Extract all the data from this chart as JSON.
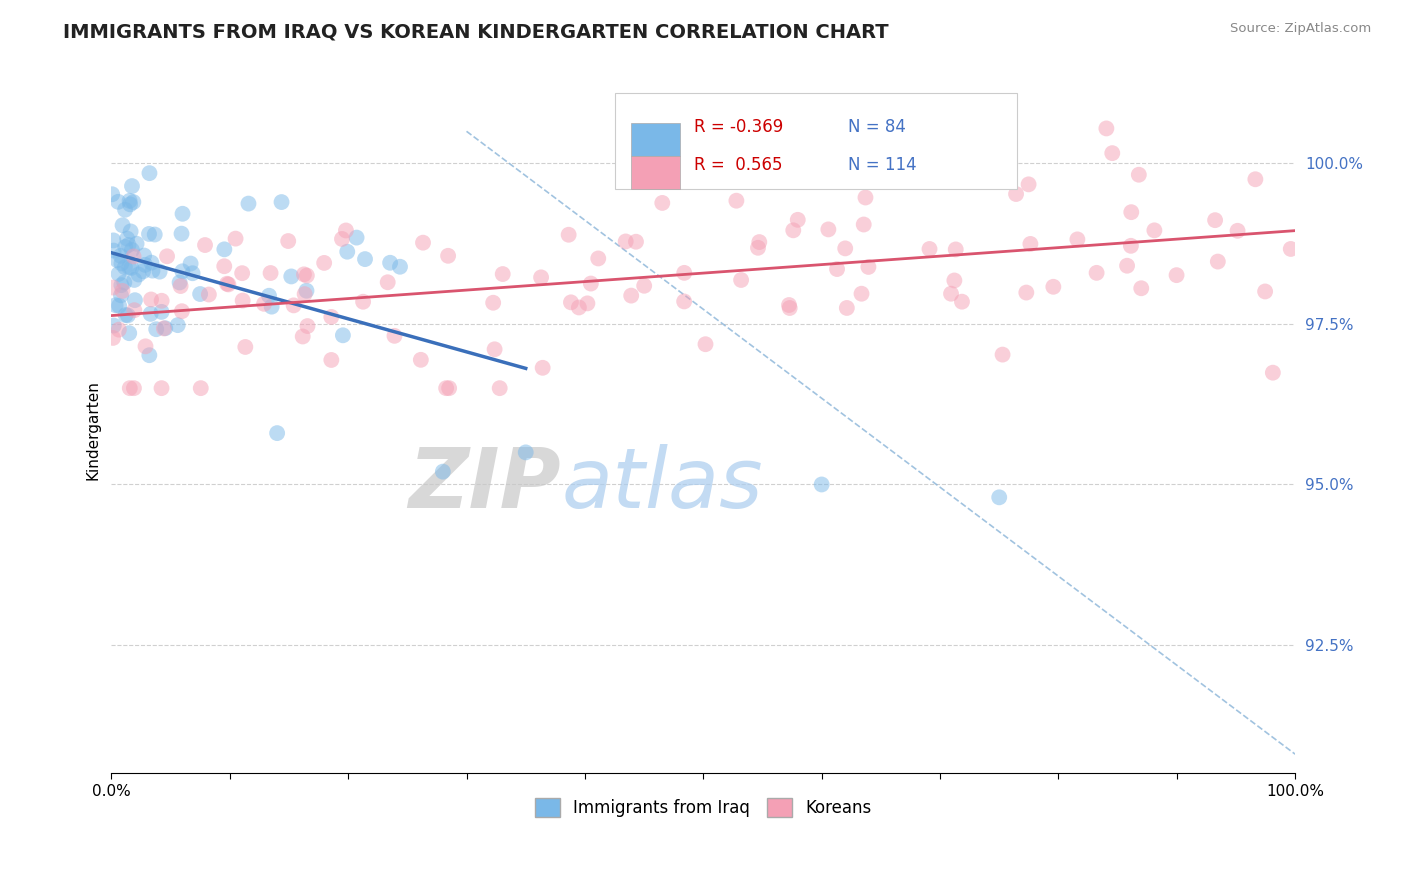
{
  "title": "IMMIGRANTS FROM IRAQ VS KOREAN KINDERGARTEN CORRELATION CHART",
  "source_text": "Source: ZipAtlas.com",
  "ylabel": "Kindergarten",
  "legend_entries": [
    "Immigrants from Iraq",
    "Koreans"
  ],
  "R_blue": -0.369,
  "N_blue": 84,
  "R_pink": 0.565,
  "N_pink": 114,
  "blue_color": "#7ab8e8",
  "pink_color": "#f4a0b5",
  "blue_line_color": "#3a6fba",
  "pink_line_color": "#d9546e",
  "dash_line_color": "#8ab4d8",
  "xmin": 0.0,
  "xmax": 100.0,
  "ymin": 90.5,
  "ymax": 101.2,
  "yticks": [
    92.5,
    95.0,
    97.5,
    100.0
  ],
  "ytick_labels": [
    "92.5%",
    "95.0%",
    "97.5%",
    "100.0%"
  ],
  "xtick_positions": [
    0,
    10,
    20,
    30,
    40,
    50,
    60,
    70,
    80,
    90,
    100
  ],
  "xtick_labels_main": [
    "0.0%",
    "100.0%"
  ],
  "watermark_zip": "ZIP",
  "watermark_atlas": "atlas",
  "background_color": "#ffffff",
  "legend_R_color": "#cc0000",
  "legend_N_color": "#4472c4",
  "ytick_color": "#4472c4",
  "grid_color": "#d0d0d0"
}
